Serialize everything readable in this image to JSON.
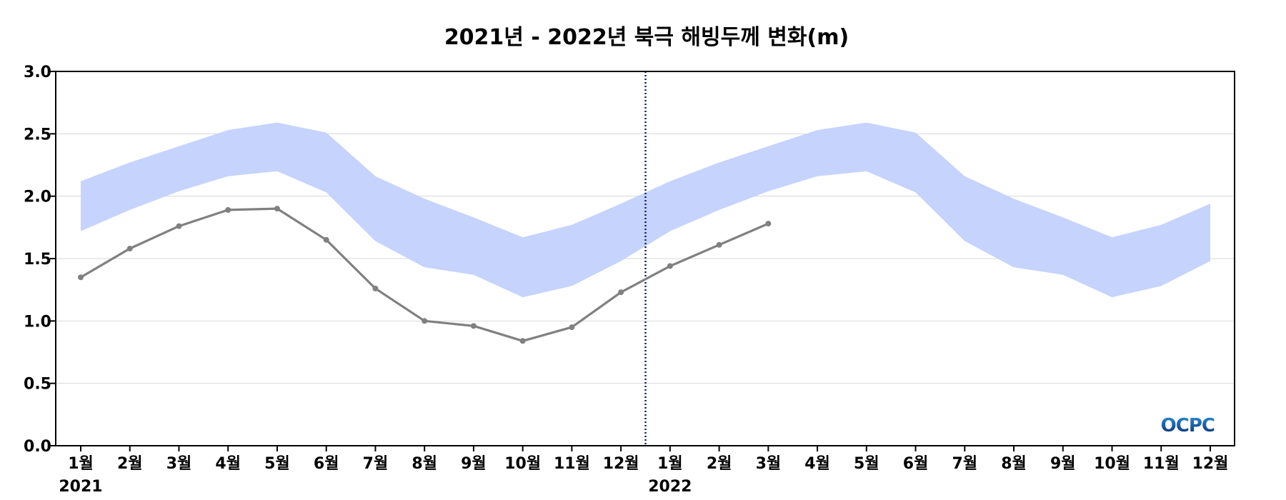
{
  "chart_data": {
    "type": "line",
    "title": "2021년 - 2022년 북극 해빙두께 변화(m)",
    "xlabel": "",
    "ylabel": "",
    "ylim": [
      0,
      3.0
    ],
    "y_ticks": [
      "0.0",
      "0.5",
      "1.0",
      "1.5",
      "2.0",
      "2.5",
      "3.0"
    ],
    "categories": [
      "1월",
      "2월",
      "3월",
      "4월",
      "5월",
      "6월",
      "7월",
      "8월",
      "9월",
      "10월",
      "11월",
      "12월",
      "1월",
      "2월",
      "3월",
      "4월",
      "5월",
      "6월",
      "7월",
      "8월",
      "9월",
      "10월",
      "11월",
      "12월"
    ],
    "year_labels": [
      {
        "label": "2021",
        "start_index": 0
      },
      {
        "label": "2022",
        "start_index": 12
      }
    ],
    "year_divider_between": [
      11,
      12
    ],
    "grid": true,
    "series": [
      {
        "kind": "line",
        "color": "#808080",
        "values": [
          1.35,
          1.58,
          1.76,
          1.89,
          1.9,
          1.65,
          1.26,
          1.0,
          0.96,
          0.84,
          0.95,
          1.23,
          1.44,
          1.61,
          1.78,
          null,
          null,
          null,
          null,
          null,
          null,
          null,
          null,
          null
        ]
      },
      {
        "kind": "band",
        "color": "#c5d3fd",
        "lower": [
          1.72,
          1.89,
          2.04,
          2.16,
          2.2,
          2.03,
          1.64,
          1.43,
          1.37,
          1.19,
          1.28,
          1.48,
          1.72,
          1.89,
          2.04,
          2.16,
          2.2,
          2.03,
          1.64,
          1.43,
          1.37,
          1.19,
          1.28,
          1.48
        ],
        "upper": [
          2.12,
          2.27,
          2.4,
          2.53,
          2.59,
          2.51,
          2.16,
          1.98,
          1.83,
          1.67,
          1.77,
          1.94,
          2.12,
          2.27,
          2.4,
          2.53,
          2.59,
          2.51,
          2.16,
          1.98,
          1.83,
          1.67,
          1.77,
          1.94
        ]
      }
    ]
  },
  "logo": {
    "text": "OCPC",
    "color_top": "#2b8fd6",
    "color_bottom": "#0b2a6b"
  }
}
